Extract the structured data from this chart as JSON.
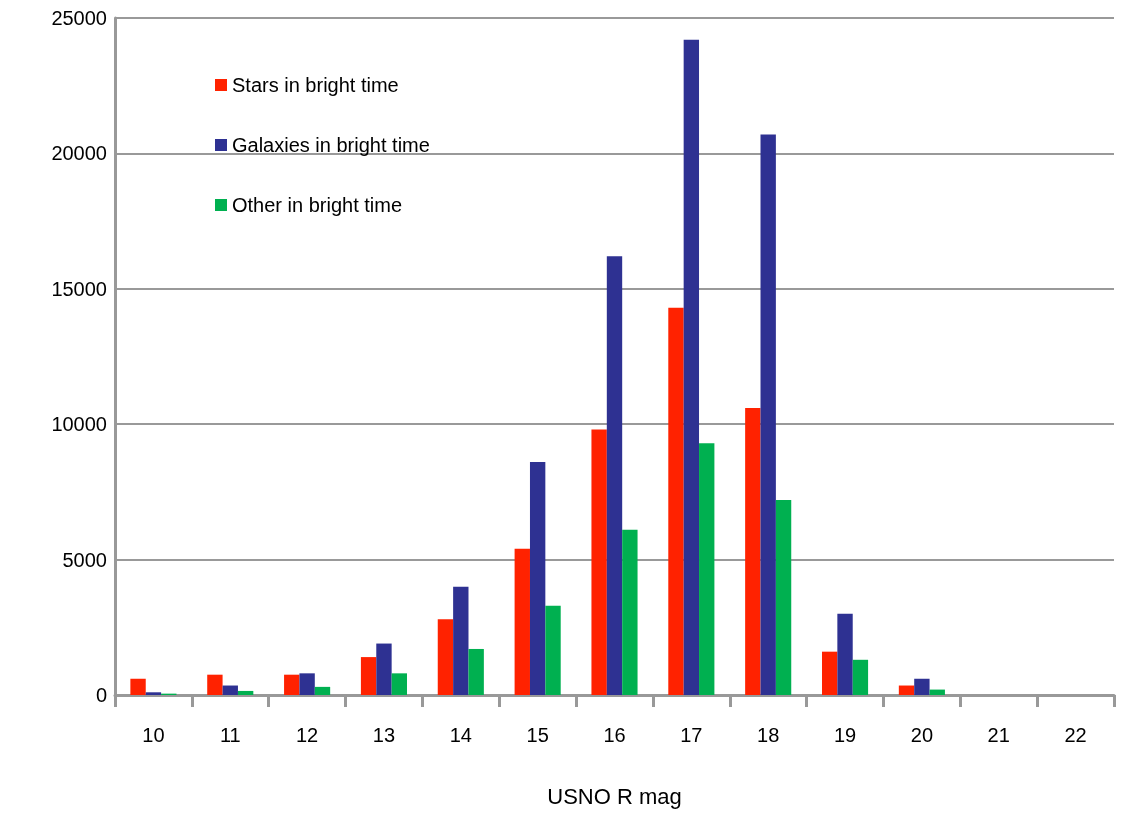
{
  "chart_data": {
    "type": "bar",
    "xlabel": "USNO R mag",
    "categories": [
      "10",
      "11",
      "12",
      "13",
      "14",
      "15",
      "16",
      "17",
      "18",
      "19",
      "20",
      "21",
      "22"
    ],
    "series": [
      {
        "name": "Stars in bright time",
        "color": "#ff2200",
        "values": [
          600,
          750,
          750,
          1400,
          2800,
          5400,
          9800,
          14300,
          10600,
          1600,
          350,
          0,
          0
        ]
      },
      {
        "name": "Galaxies in bright time",
        "color": "#2e3192",
        "values": [
          100,
          350,
          800,
          1900,
          4000,
          8600,
          16200,
          24200,
          20700,
          3000,
          600,
          0,
          0
        ]
      },
      {
        "name": "Other in bright time",
        "color": "#00b050",
        "values": [
          50,
          150,
          300,
          800,
          1700,
          3300,
          6100,
          9300,
          7200,
          1300,
          200,
          0,
          0
        ]
      }
    ],
    "ylim": [
      0,
      25000
    ],
    "yticks": [
      0,
      5000,
      10000,
      15000,
      20000,
      25000
    ],
    "grid": "y",
    "legend": "top left"
  }
}
